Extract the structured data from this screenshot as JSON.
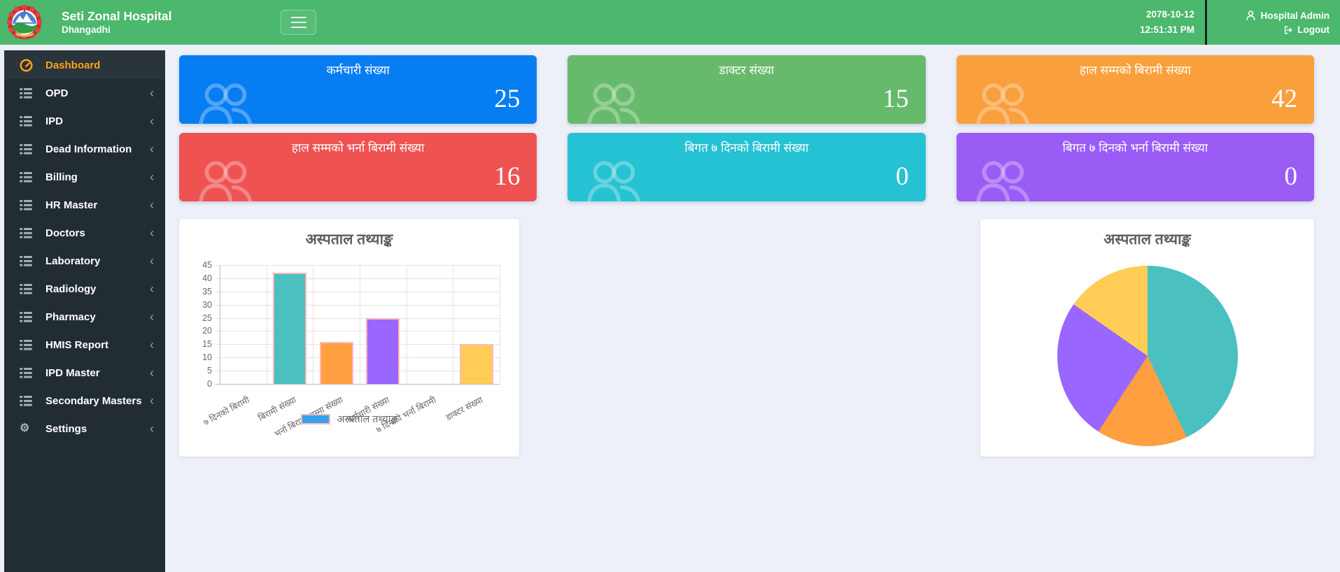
{
  "header": {
    "hospital_name": "Seti Zonal Hospital",
    "hospital_location": "Dhangadhi",
    "date": "2078-10-12",
    "time": "12:51:31 PM",
    "admin_name": "Hospital Admin",
    "logout_label": "Logout"
  },
  "sidebar": {
    "items": [
      {
        "label": "Dashboard",
        "icon": "dashboard-icon",
        "active": true,
        "chevron": false
      },
      {
        "label": "OPD",
        "icon": "list-icon",
        "active": false,
        "chevron": true
      },
      {
        "label": "IPD",
        "icon": "list-icon",
        "active": false,
        "chevron": true
      },
      {
        "label": "Dead Information",
        "icon": "list-icon",
        "active": false,
        "chevron": true
      },
      {
        "label": "Billing",
        "icon": "list-icon",
        "active": false,
        "chevron": true
      },
      {
        "label": "HR Master",
        "icon": "list-icon",
        "active": false,
        "chevron": true
      },
      {
        "label": "Doctors",
        "icon": "list-icon",
        "active": false,
        "chevron": true
      },
      {
        "label": "Laboratory",
        "icon": "list-icon",
        "active": false,
        "chevron": true
      },
      {
        "label": "Radiology",
        "icon": "list-icon",
        "active": false,
        "chevron": true
      },
      {
        "label": "Pharmacy",
        "icon": "list-icon",
        "active": false,
        "chevron": true
      },
      {
        "label": "HMIS Report",
        "icon": "list-icon",
        "active": false,
        "chevron": true
      },
      {
        "label": "IPD Master",
        "icon": "list-icon",
        "active": false,
        "chevron": true
      },
      {
        "label": "Secondary Masters",
        "icon": "list-icon",
        "active": false,
        "chevron": true
      },
      {
        "label": "Settings",
        "icon": "gear-icon",
        "active": false,
        "chevron": true
      }
    ]
  },
  "stat_cards": [
    {
      "title": "कर्मचारी संख्या",
      "value": "25",
      "color": "#077df2"
    },
    {
      "title": "डाक्टर संख्या",
      "value": "15",
      "color": "#67ba6b"
    },
    {
      "title": "हाल सम्मको बिरामी संख्या",
      "value": "42",
      "color": "#f9a03c"
    },
    {
      "title": "हाल सम्मको भर्ना बिरामी संख्या",
      "value": "16",
      "color": "#ee5352"
    },
    {
      "title": "बिगत ७ दिनको बिरामी संख्या",
      "value": "0",
      "color": "#25c2d3"
    },
    {
      "title": "बिगत ७ दिनको भर्ना बिरामी संख्या",
      "value": "0",
      "color": "#9b5cf6"
    }
  ],
  "chart_data": [
    {
      "type": "bar",
      "title": "अस्पताल तथ्याङ्क",
      "categories": [
        "७ दिनको बिरामी",
        "बिरामी संख्या",
        "भर्ना बिरामी जम्मा संख्या",
        "कर्मचारी संख्या",
        "७ दिनको भर्ना बिरामी",
        "डाक्टर संख्या"
      ],
      "values": [
        0,
        42,
        16,
        25,
        0,
        15
      ],
      "bar_colors": [
        "#ff6384",
        "#4bc0c0",
        "#ff9f40",
        "#9966ff",
        "#36a2eb",
        "#ffcd56"
      ],
      "bar_border_color": "#ffb6c1",
      "xlabel": "",
      "ylabel": "",
      "ylim": [
        0,
        45
      ],
      "ytick_step": 5,
      "grid": true,
      "legend_position": "bottom",
      "legend_label": "अस्पताल तथ्याङ्क",
      "legend_color": "#36a2eb"
    },
    {
      "type": "pie",
      "title": "अस्पताल तथ्याङ्क",
      "labels": [
        "७ दिनको बिरामी",
        "बिरामी संख्या",
        "भर्ना बिरामी जम्मा संख्या",
        "कर्मचारी संख्या",
        "७ दिनको भर्ना बिरामी",
        "डाक्टर संख्या"
      ],
      "values": [
        0,
        42,
        16,
        25,
        0,
        15
      ],
      "colors": [
        "#ff6384",
        "#4bc0c0",
        "#ff9f40",
        "#9966ff",
        "#36a2eb",
        "#ffcd56"
      ],
      "start_angle_deg": 0,
      "direction": "clockwise",
      "legend": false
    }
  ]
}
